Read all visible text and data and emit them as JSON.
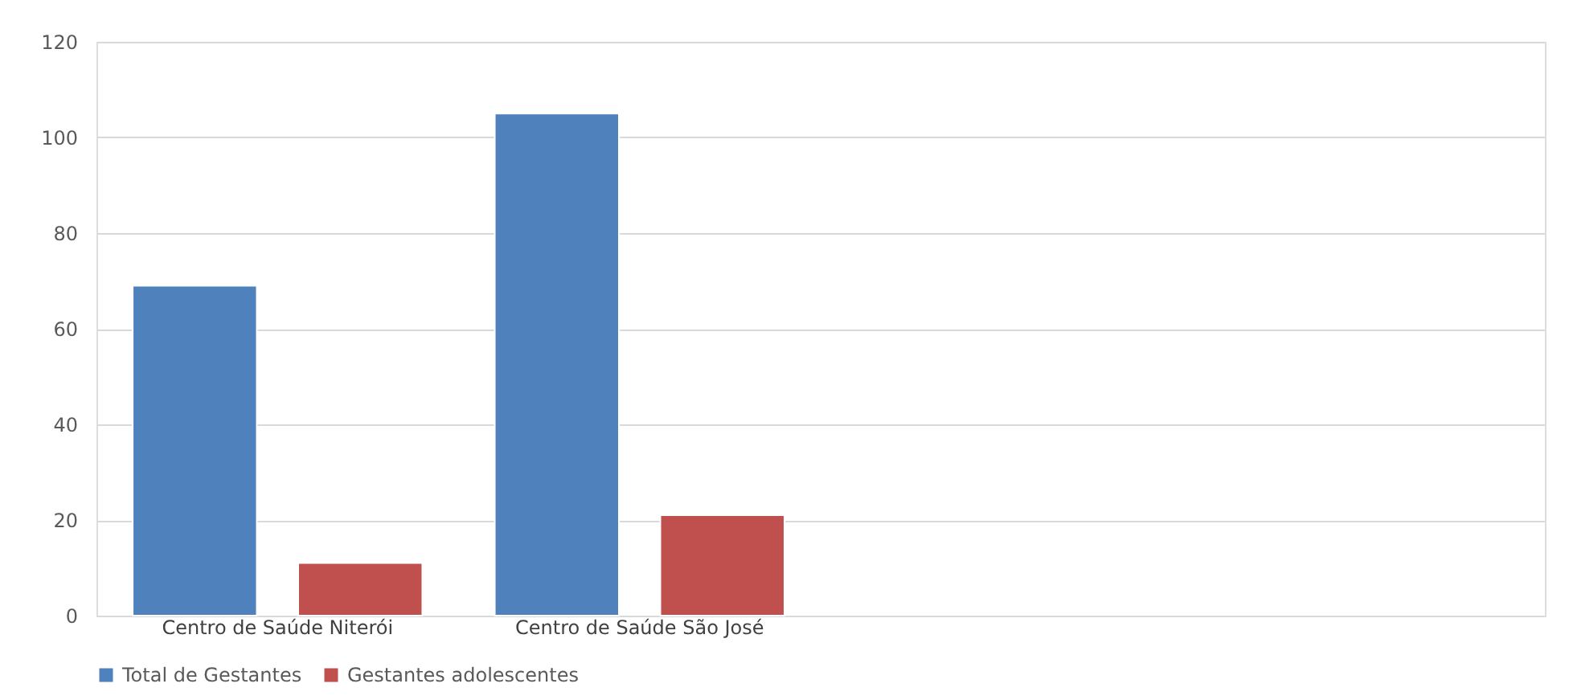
{
  "chart_data": {
    "type": "bar",
    "categories": [
      "Centro de Saúde Niterói",
      "Centro de Saúde São José",
      null,
      null
    ],
    "series": [
      {
        "name": "Total de Gestantes",
        "color": "#4f81bd",
        "values": [
          69,
          105,
          null,
          null
        ]
      },
      {
        "name": "Gestantes adolescentes",
        "color": "#c0504d",
        "values": [
          11,
          21,
          null,
          null
        ]
      }
    ],
    "ylim": [
      0,
      120
    ],
    "yticks": [
      0,
      20,
      40,
      60,
      80,
      100,
      120
    ],
    "grid": "y",
    "legend": "bottom"
  }
}
